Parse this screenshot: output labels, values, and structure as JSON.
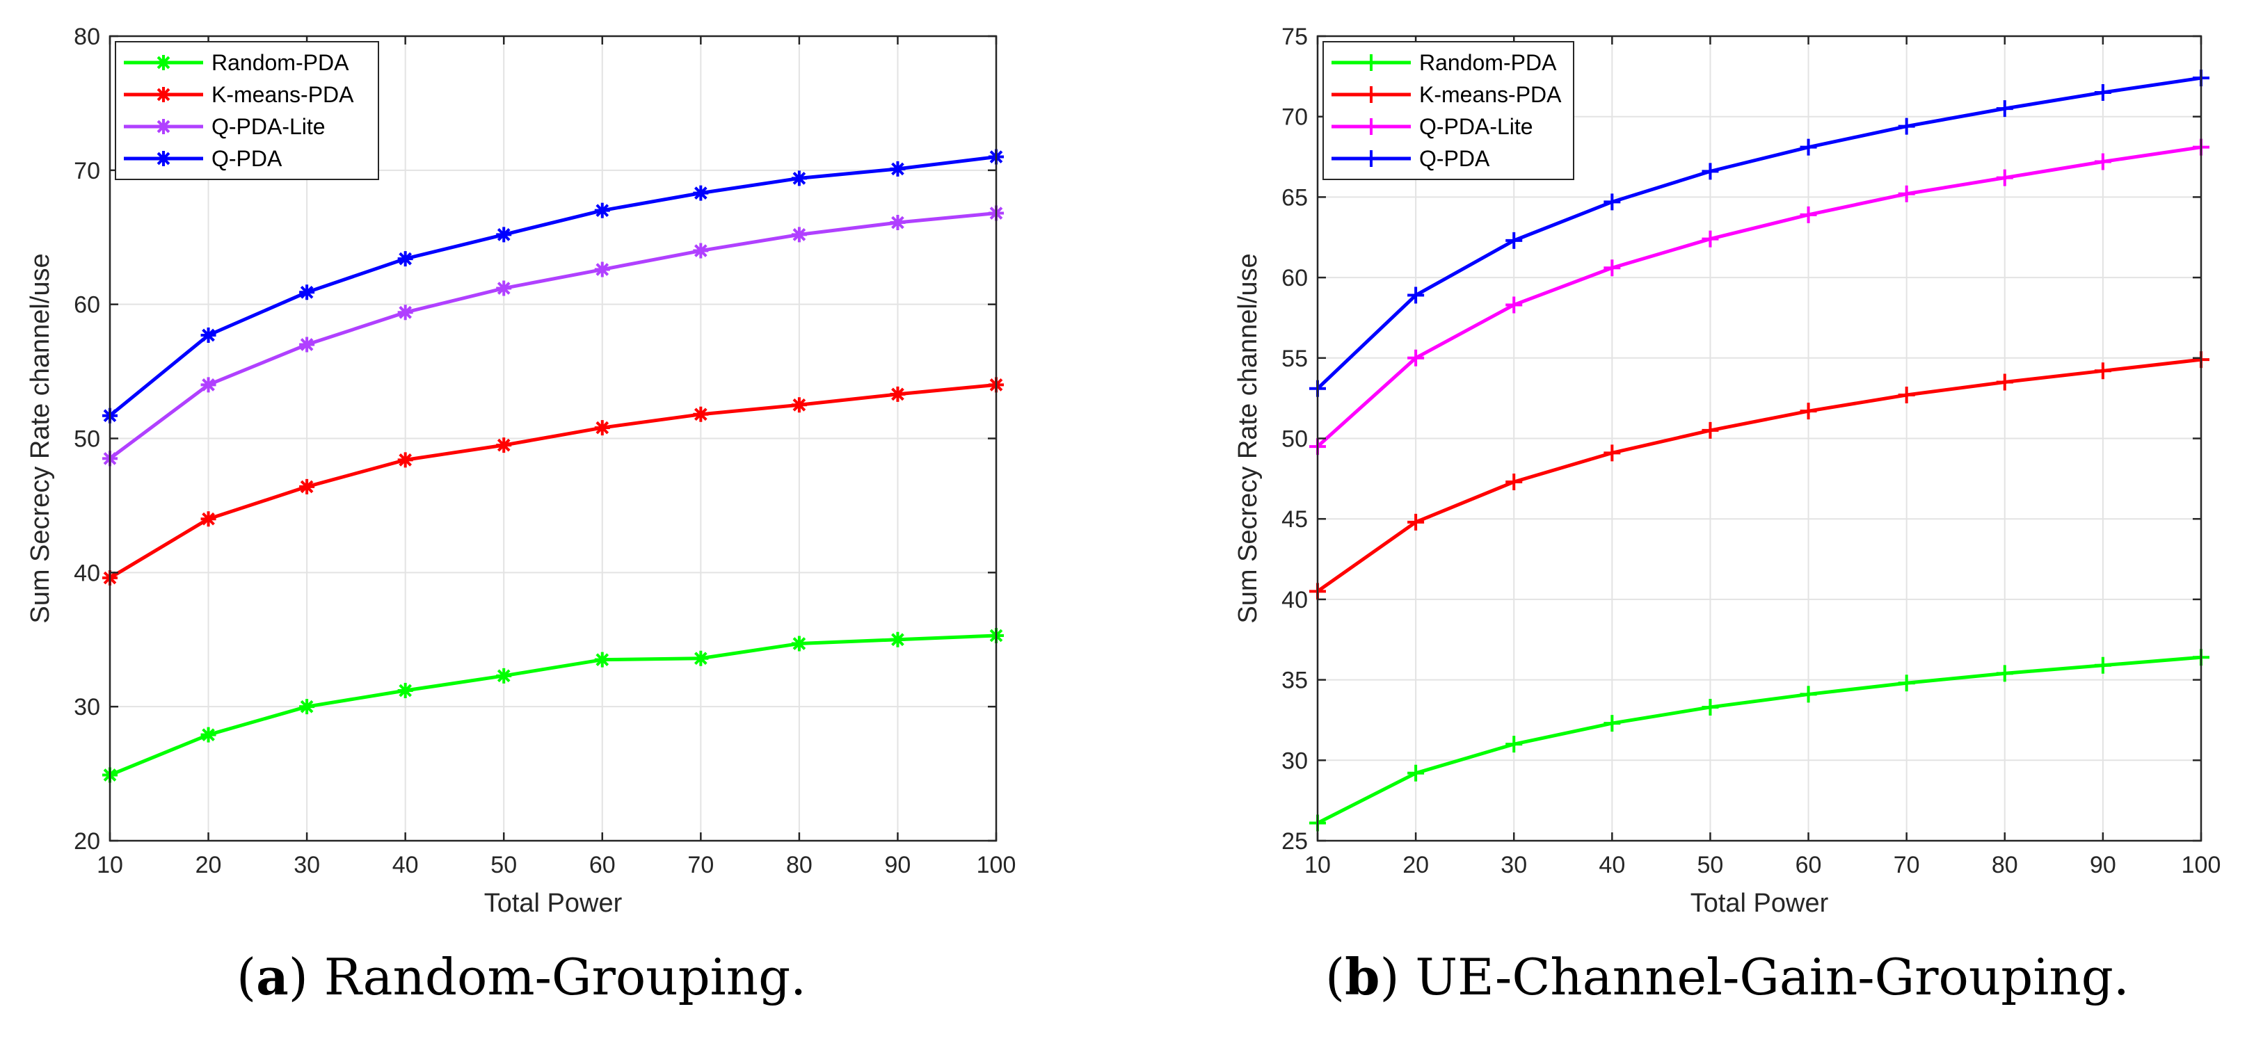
{
  "chart_data": [
    {
      "id": "a",
      "type": "line",
      "marker": "asterisk",
      "x": [
        10,
        20,
        30,
        40,
        50,
        60,
        70,
        80,
        90,
        100
      ],
      "xlim": [
        10,
        100
      ],
      "ylim": [
        20,
        80
      ],
      "xticks": [
        10,
        20,
        30,
        40,
        50,
        60,
        70,
        80,
        90,
        100
      ],
      "yticks": [
        20,
        30,
        40,
        50,
        60,
        70,
        80
      ],
      "xlabel": "Total Power",
      "ylabel": "Sum Secrecy Rate channel/use",
      "grid": true,
      "legend_position": "top-left",
      "caption_letter": "a",
      "caption_text": " Random-Grouping.",
      "series": [
        {
          "name": "Random-PDA",
          "color": "#00ff00",
          "values": [
            24.9,
            27.9,
            30.0,
            31.2,
            32.3,
            33.5,
            33.6,
            34.7,
            35.0,
            35.3
          ]
        },
        {
          "name": "K-means-PDA",
          "color": "#ff0000",
          "values": [
            39.6,
            44.0,
            46.4,
            48.4,
            49.5,
            50.8,
            51.8,
            52.5,
            53.3,
            54.0
          ]
        },
        {
          "name": "Q-PDA-Lite",
          "color": "#b040ff",
          "values": [
            48.5,
            54.0,
            57.0,
            59.4,
            61.2,
            62.6,
            64.0,
            65.2,
            66.1,
            66.8
          ]
        },
        {
          "name": "Q-PDA",
          "color": "#0000ff",
          "values": [
            51.7,
            57.7,
            60.9,
            63.4,
            65.2,
            67.0,
            68.3,
            69.4,
            70.1,
            71.0
          ]
        }
      ]
    },
    {
      "id": "b",
      "type": "line",
      "marker": "plus",
      "x": [
        10,
        20,
        30,
        40,
        50,
        60,
        70,
        80,
        90,
        100
      ],
      "xlim": [
        10,
        100
      ],
      "ylim": [
        25,
        75
      ],
      "xticks": [
        10,
        20,
        30,
        40,
        50,
        60,
        70,
        80,
        90,
        100
      ],
      "yticks": [
        25,
        30,
        35,
        40,
        45,
        50,
        55,
        60,
        65,
        70,
        75
      ],
      "xlabel": "Total Power",
      "ylabel": "Sum Secrecy Rate channel/use",
      "grid": true,
      "legend_position": "top-left",
      "caption_letter": "b",
      "caption_text": " UE-Channel-Gain-Grouping.",
      "series": [
        {
          "name": "Random-PDA",
          "color": "#00ff00",
          "values": [
            26.1,
            29.2,
            31.0,
            32.3,
            33.3,
            34.1,
            34.8,
            35.4,
            35.9,
            36.4
          ]
        },
        {
          "name": "K-means-PDA",
          "color": "#ff0000",
          "values": [
            40.5,
            44.8,
            47.3,
            49.1,
            50.5,
            51.7,
            52.7,
            53.5,
            54.2,
            54.9
          ]
        },
        {
          "name": "Q-PDA-Lite",
          "color": "#ff00ff",
          "values": [
            49.5,
            55.0,
            58.3,
            60.6,
            62.4,
            63.9,
            65.2,
            66.2,
            67.2,
            68.1
          ]
        },
        {
          "name": "Q-PDA",
          "color": "#0000ff",
          "values": [
            53.1,
            58.9,
            62.3,
            64.7,
            66.6,
            68.1,
            69.4,
            70.5,
            71.5,
            72.4
          ]
        }
      ]
    }
  ]
}
